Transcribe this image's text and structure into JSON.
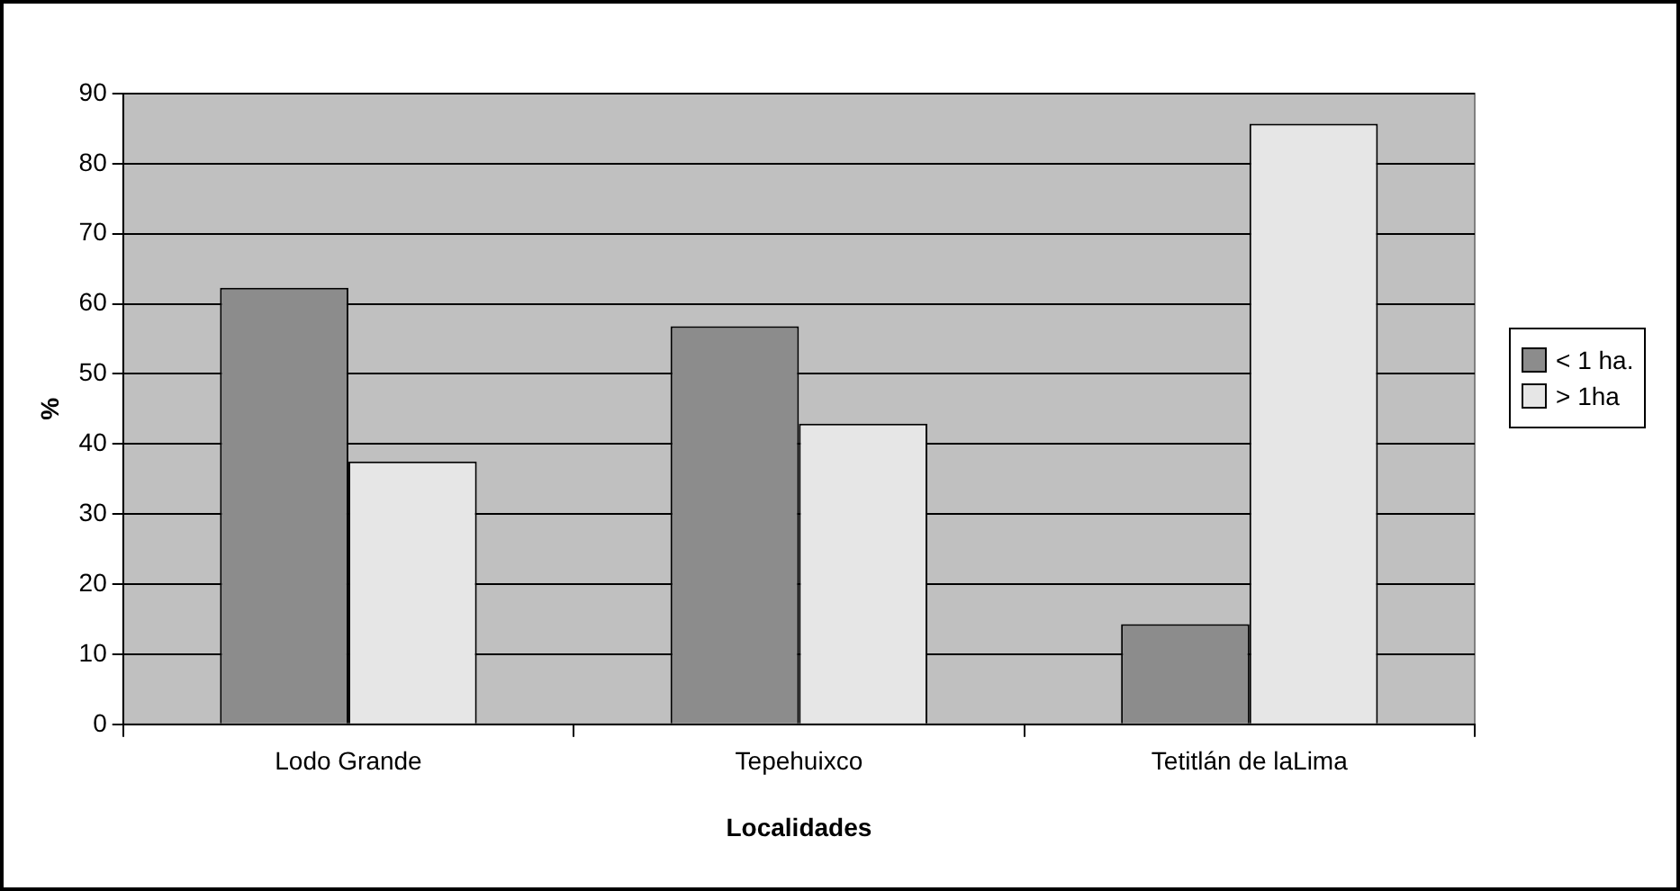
{
  "chart_data": {
    "type": "bar",
    "xlabel": "Localidades",
    "ylabel": "%",
    "categories": [
      "Lodo Grande",
      "Tepehuixco",
      "Tetitlán de laLima"
    ],
    "series": [
      {
        "name": "< 1 ha.",
        "color": "#8c8c8c",
        "values": [
          62.3,
          56.8,
          14.3
        ]
      },
      {
        "name": "> 1ha",
        "color": "#e6e6e6",
        "values": [
          37.5,
          42.9,
          85.7
        ]
      }
    ],
    "ylim": [
      0,
      90
    ],
    "yticks": [
      0,
      10,
      20,
      30,
      40,
      50,
      60,
      70,
      80,
      90
    ],
    "grid": "y",
    "legend": "right"
  }
}
